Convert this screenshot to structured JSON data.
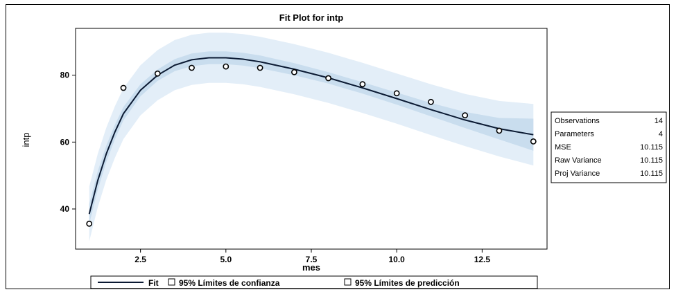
{
  "chart_data": {
    "type": "scatter",
    "title": "Fit Plot for intp",
    "xlabel": "mes",
    "ylabel": "intp",
    "xlim": [
      0.6,
      14.4
    ],
    "ylim": [
      28,
      94
    ],
    "x_ticks": [
      2.5,
      5.0,
      7.5,
      10.0,
      12.5
    ],
    "x_tick_labels": [
      "2.5",
      "5.0",
      "7.5",
      "10.0",
      "12.5"
    ],
    "y_ticks": [
      40,
      60,
      80
    ],
    "y_tick_labels": [
      "40",
      "60",
      "80"
    ],
    "grid": false,
    "points": [
      {
        "x": 1,
        "y": 35.6
      },
      {
        "x": 2,
        "y": 76.2
      },
      {
        "x": 3,
        "y": 80.5
      },
      {
        "x": 4,
        "y": 82.2
      },
      {
        "x": 5,
        "y": 82.6
      },
      {
        "x": 6,
        "y": 82.2
      },
      {
        "x": 7,
        "y": 80.9
      },
      {
        "x": 8,
        "y": 79.1
      },
      {
        "x": 9,
        "y": 77.3
      },
      {
        "x": 10,
        "y": 74.6
      },
      {
        "x": 11,
        "y": 72.0
      },
      {
        "x": 12,
        "y": 68.0
      },
      {
        "x": 13,
        "y": 63.4
      },
      {
        "x": 14,
        "y": 60.2
      }
    ],
    "fit": {
      "x": [
        1.0,
        1.25,
        1.5,
        1.75,
        2.0,
        2.5,
        3.0,
        3.5,
        4.0,
        4.5,
        5.0,
        5.5,
        6.0,
        7.0,
        8.0,
        9.0,
        10.0,
        11.0,
        12.0,
        13.0,
        14.0
      ],
      "y": [
        38.5,
        48.5,
        56.5,
        63.0,
        68.5,
        75.5,
        80.0,
        83.0,
        84.6,
        85.2,
        85.2,
        84.8,
        84.0,
        81.8,
        79.2,
        76.2,
        73.0,
        69.7,
        66.6,
        64.0,
        62.2
      ]
    },
    "confidence_half_width": [
      3.0,
      2.8,
      2.5,
      2.2,
      2.0,
      1.8,
      1.7,
      1.8,
      1.9,
      1.9,
      1.9,
      1.9,
      1.9,
      1.8,
      1.7,
      1.7,
      1.8,
      2.0,
      2.4,
      3.2,
      4.8
    ],
    "prediction_half_width": [
      8.2,
      8.0,
      7.8,
      7.7,
      7.6,
      7.5,
      7.5,
      7.5,
      7.5,
      7.5,
      7.5,
      7.5,
      7.5,
      7.5,
      7.5,
      7.5,
      7.5,
      7.6,
      7.8,
      8.3,
      9.2
    ],
    "legend": [
      {
        "label": "Fit",
        "symbol": "line"
      },
      {
        "label": "95% Límites de confianza",
        "symbol": "box"
      },
      {
        "label": "95% Límites de predicción",
        "symbol": "box"
      }
    ],
    "legend_placement": "bottom",
    "stats_table": [
      {
        "label": "Observations",
        "value": "14"
      },
      {
        "label": "Parameters",
        "value": "4"
      },
      {
        "label": "MSE",
        "value": "10.115"
      },
      {
        "label": "Raw Variance",
        "value": "10.115"
      },
      {
        "label": "Proj Variance",
        "value": "10.115"
      }
    ],
    "stats_placement": "right",
    "colors": {
      "prediction_band": "#e3eef8",
      "confidence_band": "#c9ddee",
      "fit_line": "#0b1a33",
      "points": "#000000",
      "axis": "#000000"
    }
  }
}
